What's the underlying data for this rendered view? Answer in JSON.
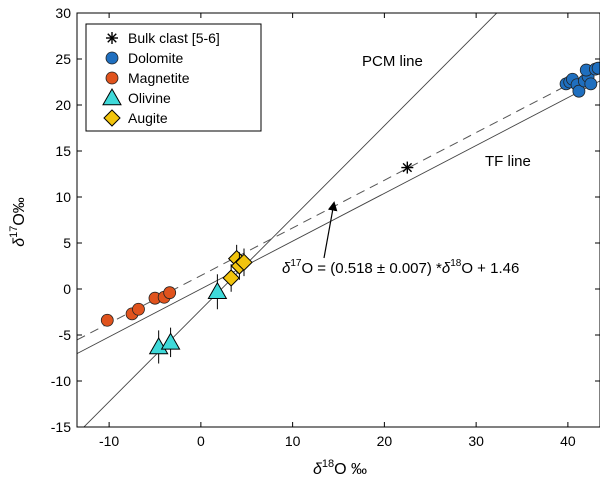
{
  "chart_data": {
    "type": "scatter",
    "title": "",
    "xlabel": "δ18O ‰",
    "ylabel": "δ17O‰",
    "xlim": [
      -13.5,
      43.5
    ],
    "ylim": [
      -15,
      30
    ],
    "x_ticks": [
      -10,
      0,
      10,
      20,
      30,
      40
    ],
    "y_ticks": [
      -15,
      -10,
      -5,
      0,
      5,
      10,
      15,
      20,
      25,
      30
    ],
    "grid": false,
    "legend_position": "top-left",
    "legend": [
      {
        "label": "Bulk clast [5-6]",
        "marker": "asterisk",
        "color": "#000000"
      },
      {
        "label": "Dolomite",
        "marker": "circle",
        "color": "#1f6fbf"
      },
      {
        "label": "Magnetite",
        "marker": "circle",
        "color": "#e0531d"
      },
      {
        "label": "Olivine",
        "marker": "triangle",
        "color": "#3fd9d9"
      },
      {
        "label": "Augite",
        "marker": "diamond",
        "color": "#f2c40d"
      }
    ],
    "series": [
      {
        "name": "Bulk clast [5-6]",
        "points": [
          {
            "x": 22.5,
            "y": 13.2
          }
        ]
      },
      {
        "name": "Dolomite",
        "points": [
          {
            "x": 39.8,
            "y": 22.3
          },
          {
            "x": 40.2,
            "y": 22.5
          },
          {
            "x": 40.5,
            "y": 22.8
          },
          {
            "x": 41.0,
            "y": 22.2
          },
          {
            "x": 41.2,
            "y": 21.5
          },
          {
            "x": 41.8,
            "y": 22.6
          },
          {
            "x": 42.2,
            "y": 23.1
          },
          {
            "x": 42.0,
            "y": 23.8
          },
          {
            "x": 42.5,
            "y": 22.3
          },
          {
            "x": 43.0,
            "y": 23.9
          },
          {
            "x": 43.3,
            "y": 24.0
          }
        ]
      },
      {
        "name": "Magnetite",
        "points": [
          {
            "x": -10.2,
            "y": -3.4
          },
          {
            "x": -7.5,
            "y": -2.7
          },
          {
            "x": -6.8,
            "y": -2.2
          },
          {
            "x": -5.0,
            "y": -1.0
          },
          {
            "x": -4.0,
            "y": -0.9
          },
          {
            "x": -3.4,
            "y": -0.4
          }
        ]
      },
      {
        "name": "Olivine",
        "points": [
          {
            "x": -4.6,
            "y": -6.3,
            "err": 1.8
          },
          {
            "x": -3.3,
            "y": -5.8,
            "err": 1.6
          },
          {
            "x": 1.8,
            "y": -0.3,
            "err": 1.9
          }
        ]
      },
      {
        "name": "Augite",
        "points": [
          {
            "x": 3.3,
            "y": 1.2,
            "err": 1.5
          },
          {
            "x": 3.9,
            "y": 3.3,
            "err": 1.5
          },
          {
            "x": 4.2,
            "y": 2.5,
            "err": 1.5
          },
          {
            "x": 4.7,
            "y": 2.9,
            "err": 1.5
          }
        ]
      }
    ],
    "lines": [
      {
        "name": "PCM line",
        "label": "PCM line",
        "slope": 1.0,
        "intercept": -2.25,
        "style": "solid"
      },
      {
        "name": "TF line",
        "label": "TF line",
        "slope": 0.52,
        "intercept": 0.0,
        "style": "solid"
      },
      {
        "name": "fit",
        "slope": 0.518,
        "intercept": 1.46,
        "style": "dashed"
      }
    ],
    "annotation": {
      "text_parts": [
        "δ",
        "17",
        "O = (0.518 ± 0.007) *",
        "δ",
        "18",
        "O + 1.46"
      ],
      "arrow_to": {
        "x": 14.5,
        "y": 9.3
      }
    }
  }
}
